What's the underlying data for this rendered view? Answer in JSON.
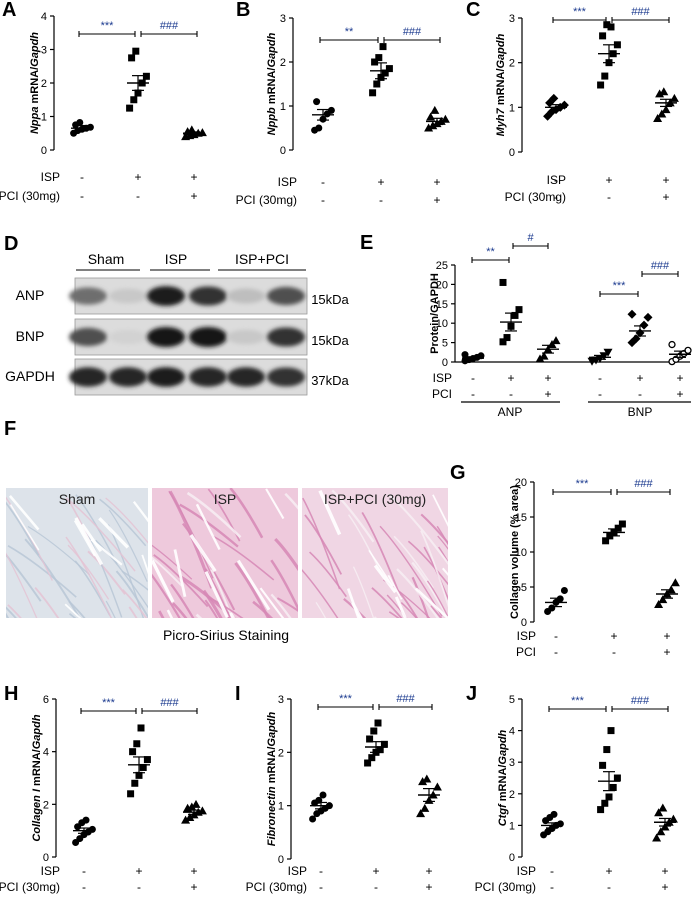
{
  "panels": {
    "A": {
      "label": "A",
      "ylabel_gene": "Nppa",
      "ylabel_rest": " mRNA/",
      "ylabel_norm": "Gapdh",
      "ylim": [
        0,
        4
      ],
      "yticks": [
        "0",
        "1",
        "2",
        "3",
        "4"
      ],
      "row1_name": "ISP",
      "row2_name": "PCI (30mg)",
      "row1": [
        "-",
        "+",
        "+"
      ],
      "row2": [
        "-",
        "-",
        "+"
      ],
      "sig1": "***",
      "sig2": "###",
      "groups": [
        {
          "marker": "circle",
          "mean": 0.65,
          "sem": 0.08,
          "points": [
            0.5,
            0.58,
            0.62,
            0.65,
            0.68,
            0.75,
            0.82
          ]
        },
        {
          "marker": "square",
          "mean": 2.0,
          "sem": 0.22,
          "points": [
            1.25,
            1.5,
            1.7,
            2.0,
            2.2,
            2.75,
            2.95
          ]
        },
        {
          "marker": "triangle",
          "mean": 0.5,
          "sem": 0.04,
          "points": [
            0.4,
            0.43,
            0.46,
            0.5,
            0.52,
            0.55,
            0.6
          ]
        }
      ]
    },
    "B": {
      "label": "B",
      "ylabel_gene": "Nppb",
      "ylabel_rest": " mRNA/",
      "ylabel_norm": "Gapdh",
      "ylim": [
        0,
        3
      ],
      "yticks": [
        "0",
        "1",
        "2",
        "3"
      ],
      "row1_name": "ISP",
      "row2_name": "PCI (30mg)",
      "row1": [
        "-",
        "+",
        "+"
      ],
      "row2": [
        "-",
        "-",
        "+"
      ],
      "sig1": "**",
      "sig2": "###",
      "groups": [
        {
          "marker": "circle",
          "mean": 0.8,
          "sem": 0.12,
          "points": [
            0.45,
            0.5,
            0.7,
            0.82,
            0.9,
            1.1
          ]
        },
        {
          "marker": "square",
          "mean": 1.8,
          "sem": 0.18,
          "points": [
            1.3,
            1.5,
            1.65,
            1.75,
            1.85,
            2.0,
            2.1,
            2.35
          ]
        },
        {
          "marker": "triangle",
          "mean": 0.65,
          "sem": 0.07,
          "points": [
            0.5,
            0.55,
            0.6,
            0.65,
            0.7,
            0.75,
            0.9
          ]
        }
      ]
    },
    "C": {
      "label": "C",
      "ylabel_gene": "Myh7",
      "ylabel_rest": " mRNA/",
      "ylabel_norm": "Gapdh",
      "ylim": [
        0,
        3
      ],
      "yticks": [
        "0",
        "1",
        "2",
        "3"
      ],
      "row1_name": "ISP",
      "row2_name": "PCI (30mg)",
      "row1": [
        "-",
        "+",
        "+"
      ],
      "row2": [
        "-",
        "-",
        "+"
      ],
      "sig1": "***",
      "sig2": "###",
      "groups": [
        {
          "marker": "diamond",
          "mean": 1.0,
          "sem": 0.06,
          "points": [
            0.8,
            0.9,
            0.95,
            1.0,
            1.05,
            1.1,
            1.2
          ]
        },
        {
          "marker": "square",
          "mean": 2.2,
          "sem": 0.2,
          "points": [
            1.5,
            1.7,
            2.0,
            2.2,
            2.4,
            2.6,
            2.85,
            2.8
          ]
        },
        {
          "marker": "triangle",
          "mean": 1.1,
          "sem": 0.08,
          "points": [
            0.75,
            0.85,
            0.95,
            1.1,
            1.2,
            1.3,
            1.35
          ]
        }
      ]
    },
    "D": {
      "label": "D",
      "col_sham": "Sham",
      "col_isp": "ISP",
      "col_isppci": "ISP+PCI",
      "rows": [
        {
          "name": "ANP",
          "kda": "15kDa"
        },
        {
          "name": "BNP",
          "kda": "15kDa"
        },
        {
          "name": "GAPDH",
          "kda": "37kDa"
        }
      ],
      "intensity": [
        [
          0.55,
          0.1,
          0.95,
          0.85,
          0.15,
          0.7
        ],
        [
          0.7,
          0.05,
          1.0,
          1.0,
          0.1,
          0.85
        ],
        [
          0.9,
          0.9,
          0.95,
          0.9,
          0.9,
          0.85
        ]
      ]
    },
    "E": {
      "label": "E",
      "ylabel": "Protein/GAPDH",
      "ylim": [
        0,
        25
      ],
      "yticks": [
        "0",
        "5",
        "10",
        "15",
        "20",
        "25"
      ],
      "row1_name": "ISP",
      "row2_name": "PCI",
      "row1": [
        "-",
        "+",
        "+",
        "-",
        "+",
        "+"
      ],
      "row2": [
        "-",
        "-",
        "+",
        "-",
        "-",
        "+"
      ],
      "group_names": [
        "ANP",
        "BNP"
      ],
      "sigs": [
        "**",
        "#",
        "***",
        "###"
      ],
      "groups": [
        {
          "marker": "circle",
          "mean": 1.0,
          "sem": 0.3,
          "points": [
            0.3,
            0.6,
            0.9,
            1.2,
            1.6,
            1.9
          ]
        },
        {
          "marker": "square",
          "mean": 10.3,
          "sem": 2.3,
          "points": [
            5.2,
            6.3,
            9.2,
            12.0,
            13.5,
            20.5
          ]
        },
        {
          "marker": "triangle",
          "mean": 3.3,
          "sem": 1.0,
          "points": [
            0.8,
            1.5,
            3.2,
            4.5,
            5.5
          ]
        },
        {
          "marker": "triangle-down",
          "mean": 1.2,
          "sem": 0.5,
          "points": [
            0.2,
            0.5,
            0.9,
            1.6,
            2.5
          ]
        },
        {
          "marker": "diamond",
          "mean": 8.0,
          "sem": 1.3,
          "points": [
            5.0,
            6.0,
            7.5,
            9.5,
            11.5,
            12.3
          ]
        },
        {
          "marker": "circle-open",
          "mean": 2.0,
          "sem": 0.8,
          "points": [
            0.1,
            0.7,
            1.5,
            2.2,
            3.0,
            4.5
          ]
        }
      ]
    },
    "F": {
      "label": "F",
      "titles": [
        "Sham",
        "ISP",
        "ISP+PCI (30mg)"
      ],
      "caption": "Picro-Sirius Staining"
    },
    "G": {
      "label": "G",
      "ylabel": "Collagen volume (% area)",
      "ylim": [
        0,
        20
      ],
      "yticks": [
        "0",
        "5",
        "10",
        "15",
        "20"
      ],
      "row1_name": "ISP",
      "row2_name": "PCI",
      "row1": [
        "-",
        "+",
        "+"
      ],
      "row2": [
        "-",
        "-",
        "+"
      ],
      "sig1": "***",
      "sig2": "###",
      "groups": [
        {
          "marker": "circle",
          "mean": 2.8,
          "sem": 0.6,
          "points": [
            1.5,
            2.0,
            2.8,
            3.3,
            4.5
          ]
        },
        {
          "marker": "square",
          "mean": 12.8,
          "sem": 0.5,
          "points": [
            11.6,
            12.3,
            12.8,
            13.4,
            14.0
          ]
        },
        {
          "marker": "triangle",
          "mean": 4.0,
          "sem": 0.6,
          "points": [
            2.5,
            3.2,
            4.0,
            4.6,
            5.6
          ]
        }
      ]
    },
    "H": {
      "label": "H",
      "ylabel_gene": "Collagen I",
      "ylabel_rest": " mRNA/",
      "ylabel_norm": "Gapdh",
      "ylim": [
        0,
        6
      ],
      "yticks": [
        "0",
        "2",
        "4",
        "6"
      ],
      "row1_name": "ISP",
      "row2_name": "PCI (30mg)",
      "row1": [
        "-",
        "+",
        "+"
      ],
      "row2": [
        "-",
        "-",
        "+"
      ],
      "sig1": "***",
      "sig2": "###",
      "groups": [
        {
          "marker": "circle",
          "mean": 1.0,
          "sem": 0.1,
          "points": [
            0.55,
            0.7,
            0.85,
            0.95,
            1.05,
            1.15,
            1.3,
            1.4
          ]
        },
        {
          "marker": "square",
          "mean": 3.5,
          "sem": 0.3,
          "points": [
            2.4,
            2.8,
            3.1,
            3.4,
            3.7,
            4.0,
            4.3,
            4.9
          ]
        },
        {
          "marker": "triangle",
          "mean": 1.7,
          "sem": 0.08,
          "points": [
            1.4,
            1.5,
            1.6,
            1.7,
            1.75,
            1.85,
            1.9,
            2.0
          ]
        }
      ]
    },
    "I": {
      "label": "I",
      "ylabel_gene": "Fibronectin",
      "ylabel_rest": " mRNA/",
      "ylabel_norm": "Gapdh",
      "ylim": [
        0,
        3
      ],
      "yticks": [
        "0",
        "1",
        "2",
        "3"
      ],
      "row1_name": "ISP",
      "row2_name": "PCI (30mg)",
      "row1": [
        "-",
        "+",
        "+"
      ],
      "row2": [
        "-",
        "-",
        "+"
      ],
      "sig1": "***",
      "sig2": "###",
      "groups": [
        {
          "marker": "circle",
          "mean": 1.0,
          "sem": 0.06,
          "points": [
            0.75,
            0.85,
            0.9,
            0.95,
            1.0,
            1.05,
            1.1,
            1.2
          ]
        },
        {
          "marker": "square",
          "mean": 2.1,
          "sem": 0.1,
          "points": [
            1.8,
            1.9,
            2.0,
            2.05,
            2.15,
            2.25,
            2.4,
            2.55
          ]
        },
        {
          "marker": "triangle",
          "mean": 1.2,
          "sem": 0.12,
          "points": [
            0.85,
            0.95,
            1.1,
            1.2,
            1.35,
            1.45,
            1.5
          ]
        }
      ]
    },
    "J": {
      "label": "J",
      "ylabel_gene": "Ctgf",
      "ylabel_rest": " mRNA/",
      "ylabel_norm": "Gapdh",
      "ylim": [
        0,
        5
      ],
      "yticks": [
        "0",
        "1",
        "2",
        "3",
        "4",
        "5"
      ],
      "row1_name": "ISP",
      "row2_name": "PCI (30mg)",
      "row1": [
        "-",
        "+",
        "+"
      ],
      "row2": [
        "-",
        "-",
        "+"
      ],
      "sig1": "***",
      "sig2": "###",
      "groups": [
        {
          "marker": "circle",
          "mean": 1.0,
          "sem": 0.08,
          "points": [
            0.7,
            0.8,
            0.9,
            1.0,
            1.05,
            1.15,
            1.25,
            1.35
          ]
        },
        {
          "marker": "square",
          "mean": 2.4,
          "sem": 0.3,
          "points": [
            1.5,
            1.7,
            1.9,
            2.2,
            2.5,
            2.9,
            3.4,
            4.0
          ]
        },
        {
          "marker": "triangle",
          "mean": 1.1,
          "sem": 0.12,
          "points": [
            0.6,
            0.8,
            0.95,
            1.1,
            1.2,
            1.4,
            1.55
          ]
        }
      ]
    }
  },
  "colors": {
    "sig_single": "#1b3a8f",
    "sig_hash": "#1b3a8f",
    "ink": "#000000",
    "stain_bg": "#f1dce8",
    "stain_fiber": "#d27fb0"
  }
}
